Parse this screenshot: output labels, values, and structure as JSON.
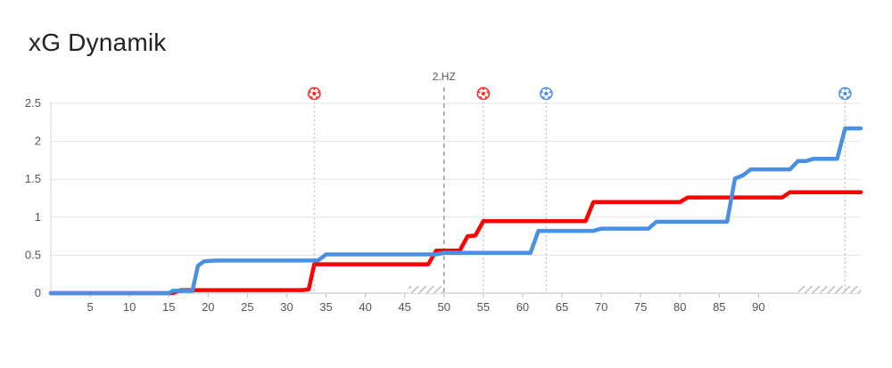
{
  "title": "xG Dynamik",
  "chart_data": {
    "type": "line",
    "title": "xG Dynamik",
    "xlabel": "",
    "ylabel": "",
    "xlim": [
      0,
      103
    ],
    "ylim": [
      0,
      2.5
    ],
    "x_ticks": [
      5,
      10,
      15,
      20,
      25,
      30,
      35,
      40,
      45,
      50,
      55,
      60,
      65,
      70,
      75,
      80,
      85,
      90
    ],
    "y_ticks": [
      0,
      0.5,
      1,
      1.5,
      2,
      2.5
    ],
    "y_tick_labels": [
      "0",
      "0.5",
      "1",
      "1.5",
      "2",
      "2.5"
    ],
    "grid": true,
    "halftime": {
      "label": "2.HZ",
      "at": 50
    },
    "series": [
      {
        "color": "#ff0000",
        "points": [
          [
            0,
            0
          ],
          [
            15.5,
            0
          ],
          [
            16.5,
            0.04
          ],
          [
            32,
            0.04
          ],
          [
            32.8,
            0.05
          ],
          [
            33.5,
            0.38
          ],
          [
            48,
            0.38
          ],
          [
            49,
            0.56
          ],
          [
            52,
            0.56
          ],
          [
            53,
            0.75
          ],
          [
            54,
            0.76
          ],
          [
            55,
            0.95
          ],
          [
            68,
            0.95
          ],
          [
            69,
            1.2
          ],
          [
            80,
            1.2
          ],
          [
            81,
            1.26
          ],
          [
            93,
            1.26
          ],
          [
            94,
            1.33
          ],
          [
            103,
            1.33
          ]
        ]
      },
      {
        "color": "#4a90e2",
        "points": [
          [
            0,
            0
          ],
          [
            15,
            0
          ],
          [
            15.5,
            0.03
          ],
          [
            18,
            0.03
          ],
          [
            18.7,
            0.36
          ],
          [
            19.5,
            0.42
          ],
          [
            21,
            0.43
          ],
          [
            34,
            0.43
          ],
          [
            35,
            0.51
          ],
          [
            49,
            0.51
          ],
          [
            50,
            0.53
          ],
          [
            61,
            0.53
          ],
          [
            62,
            0.82
          ],
          [
            69,
            0.82
          ],
          [
            70,
            0.85
          ],
          [
            76,
            0.85
          ],
          [
            77,
            0.94
          ],
          [
            86,
            0.94
          ],
          [
            87,
            1.51
          ],
          [
            88,
            1.55
          ],
          [
            89,
            1.63
          ],
          [
            94,
            1.63
          ],
          [
            95,
            1.74
          ],
          [
            96,
            1.74
          ],
          [
            97,
            1.77
          ],
          [
            100,
            1.77
          ],
          [
            101,
            2.17
          ],
          [
            103,
            2.17
          ]
        ]
      }
    ],
    "goal_markers": [
      {
        "x": 33.5,
        "team": "red"
      },
      {
        "x": 55,
        "team": "red"
      },
      {
        "x": 63,
        "team": "blue"
      },
      {
        "x": 101,
        "team": "blue"
      }
    ],
    "extra_time_hatch": [
      [
        45.5,
        50
      ],
      [
        95,
        103
      ]
    ]
  }
}
